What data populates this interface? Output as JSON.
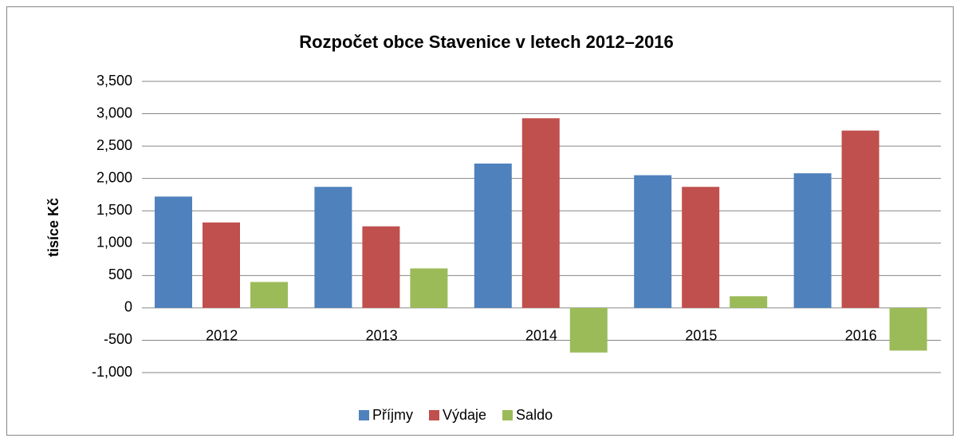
{
  "chart_data": {
    "type": "bar",
    "title": "Rozpočet obce Stavenice v letech 2012–2016",
    "y_label": "tisíce Kč",
    "categories": [
      "2012",
      "2013",
      "2014",
      "2015",
      "2016"
    ],
    "series": [
      {
        "name": "Příjmy",
        "color": "#4f81bd",
        "values": [
          1720,
          1870,
          2230,
          2050,
          2080
        ]
      },
      {
        "name": "Výdaje",
        "color": "#c0504d",
        "values": [
          1320,
          1260,
          2930,
          1870,
          2740
        ]
      },
      {
        "name": "Saldo",
        "color": "#9bbb59",
        "values": [
          400,
          610,
          -690,
          180,
          -660
        ]
      }
    ],
    "ylim": [
      -1000,
      3500
    ],
    "yticks": [
      {
        "value": -1000,
        "label": "-1,000"
      },
      -500,
      0,
      500,
      {
        "value": 1000,
        "label": "1,000"
      },
      {
        "value": 1500,
        "label": "1,500"
      },
      {
        "value": 2000,
        "label": "2,000"
      },
      {
        "value": 2500,
        "label": "2,500"
      },
      {
        "value": 3000,
        "label": "3,000"
      },
      {
        "value": 3500,
        "label": "3,500"
      }
    ],
    "grid": true,
    "legend": "bottom"
  }
}
